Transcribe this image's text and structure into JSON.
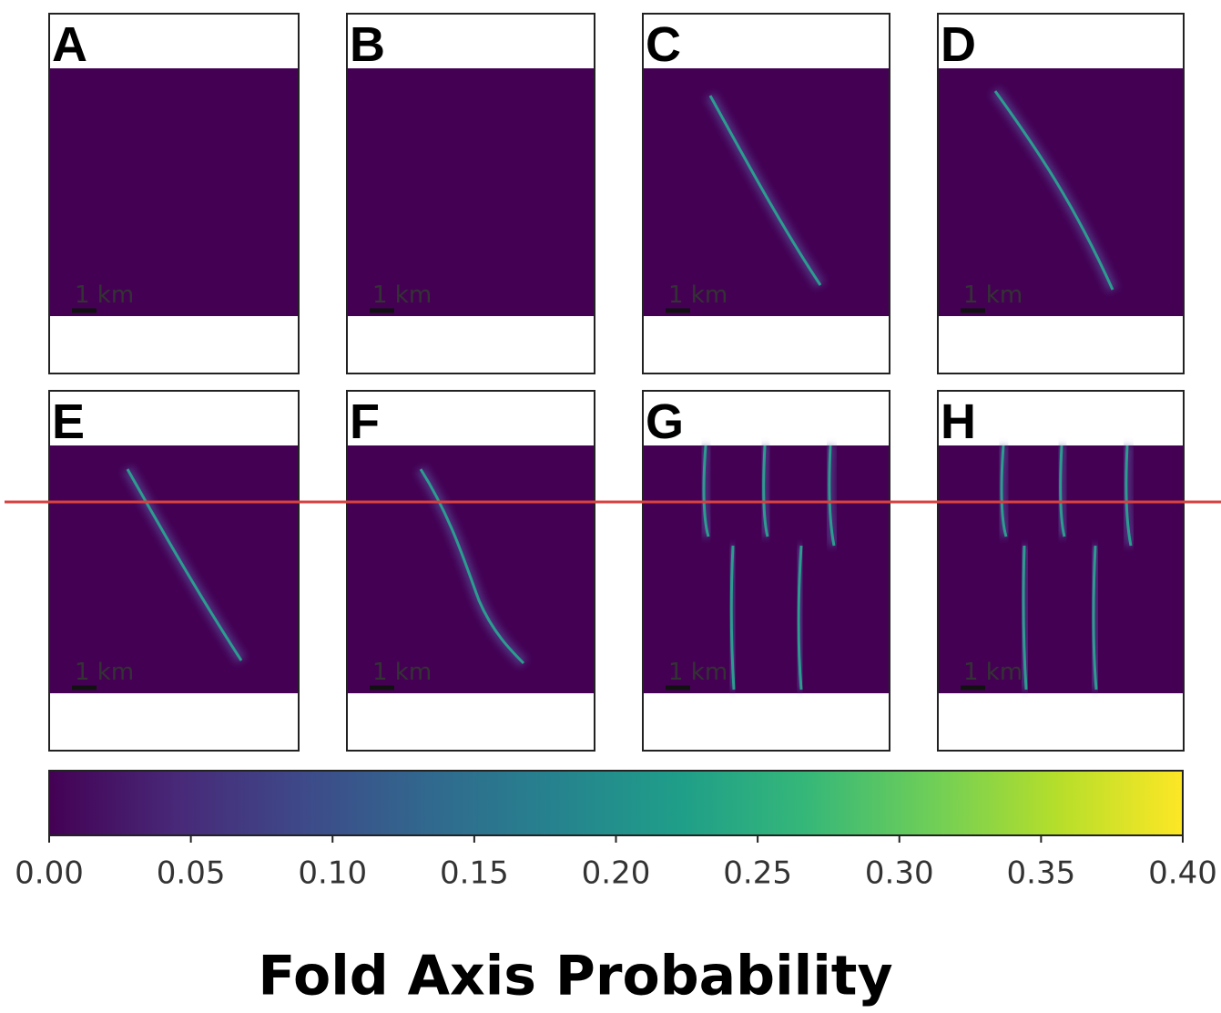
{
  "chart_data": {
    "type": "heatmap",
    "title": "Fold Axis Probability",
    "colormap": "viridis",
    "panels": [
      {
        "label": "A",
        "scale_label": "1 km"
      },
      {
        "label": "B",
        "scale_label": "1 km"
      },
      {
        "label": "C",
        "scale_label": "1 km"
      },
      {
        "label": "D",
        "scale_label": "1 km"
      },
      {
        "label": "E",
        "scale_label": "1 km"
      },
      {
        "label": "F",
        "scale_label": "1 km"
      },
      {
        "label": "G",
        "scale_label": "1 km"
      },
      {
        "label": "H",
        "scale_label": "1 km"
      }
    ],
    "zlim": [
      0,
      0.4
    ],
    "zticks": [
      {
        "value": 0,
        "label": "0.00"
      },
      {
        "value": 0.05,
        "label": "0.05"
      },
      {
        "value": 0.1,
        "label": "0.10"
      },
      {
        "value": 0.15,
        "label": "0.15"
      },
      {
        "value": 0.2,
        "label": "0.20"
      },
      {
        "value": 0.25,
        "label": "0.25"
      },
      {
        "value": 0.3,
        "label": "0.30"
      },
      {
        "value": 0.35,
        "label": "0.35"
      },
      {
        "value": 0.4,
        "label": "0.40"
      }
    ]
  }
}
